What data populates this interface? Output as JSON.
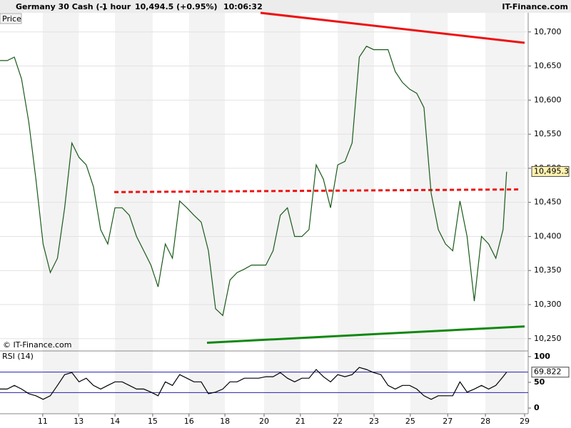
{
  "chart_data": [
    {
      "type": "line",
      "title": "Germany 30 Cash (-)",
      "interval": "1 hour",
      "quote": "10,494.5 (+0.95%)",
      "time": "10:06:32",
      "source": "IT-Finance.com",
      "ylabel": "Price",
      "copyright": "© IT-Finance.com",
      "color": "#1a5a1a",
      "grid": true,
      "x": [
        0,
        0.2,
        0.4,
        0.6,
        0.8,
        1,
        1.2,
        1.4,
        1.6,
        1.8,
        2,
        2.2,
        2.4,
        2.6,
        2.8,
        3,
        3.2,
        3.4,
        3.6,
        3.8,
        4,
        4.2,
        4.4,
        4.6,
        4.8,
        5,
        5.2,
        5.4,
        5.6,
        5.8,
        6,
        6.2,
        6.4,
        6.6,
        6.8,
        7,
        7.2,
        7.4,
        7.6,
        7.8,
        8,
        8.2,
        8.4,
        8.6,
        8.8,
        9,
        9.2,
        9.4,
        9.6,
        9.8,
        10,
        10.2,
        10.4,
        10.6,
        10.8,
        11,
        11.2,
        11.4,
        11.6,
        11.8,
        12,
        12.2,
        12.4,
        12.6,
        12.8,
        13,
        13.2,
        13.4,
        13.6,
        13.8,
        14,
        14.1
      ],
      "values": [
        10658,
        10658,
        10663,
        10631,
        10568,
        10484,
        10389,
        10347,
        10368,
        10442,
        10537,
        10516,
        10505,
        10473,
        10410,
        10389,
        10442,
        10442,
        10431,
        10400,
        10379,
        10358,
        10326,
        10389,
        10368,
        10452,
        10442,
        10431,
        10421,
        10379,
        10294,
        10284,
        10336,
        10347,
        10352,
        10358,
        10358,
        10358,
        10379,
        10431,
        10442,
        10400,
        10400,
        10410,
        10505,
        10484,
        10442,
        10505,
        10510,
        10537,
        10663,
        10679,
        10674,
        10674,
        10674,
        10642,
        10626,
        10616,
        10610,
        10589,
        10463,
        10410,
        10389,
        10379,
        10452,
        10400,
        10305,
        10400,
        10389,
        10368,
        10410,
        10495
      ],
      "xlim": [
        0,
        14.7
      ],
      "xticks": [
        {
          "value": 1.19,
          "label": "11"
        },
        {
          "value": 2.19,
          "label": "13"
        },
        {
          "value": 3.2,
          "label": "14"
        },
        {
          "value": 4.25,
          "label": "15"
        },
        {
          "value": 5.26,
          "label": "16"
        },
        {
          "value": 6.26,
          "label": "18"
        },
        {
          "value": 7.35,
          "label": "20"
        },
        {
          "value": 8.36,
          "label": "21"
        },
        {
          "value": 9.4,
          "label": "22"
        },
        {
          "value": 10.41,
          "label": "23"
        },
        {
          "value": 11.42,
          "label": "25"
        },
        {
          "value": 12.46,
          "label": "27"
        },
        {
          "value": 13.51,
          "label": "28"
        },
        {
          "value": 14.6,
          "label": "29"
        }
      ],
      "ylim": [
        10232,
        10728
      ],
      "yticks": [
        {
          "value": 10250,
          "label": "10,250"
        },
        {
          "value": 10300,
          "label": "10,300"
        },
        {
          "value": 10350,
          "label": "10,350"
        },
        {
          "value": 10400,
          "label": "10,400"
        },
        {
          "value": 10450,
          "label": "10,450"
        },
        {
          "value": 10500,
          "label": "10,500"
        },
        {
          "value": 10550,
          "label": "10,550"
        },
        {
          "value": 10600,
          "label": "10,600"
        },
        {
          "value": 10650,
          "label": "10,650"
        },
        {
          "value": 10700,
          "label": "10,700"
        }
      ],
      "last_value": {
        "value": 10495.3,
        "label": "10,495.3"
      },
      "trend_lines": [
        {
          "color": "#ee1111",
          "style": "solid",
          "x": [
            7.25,
            14.6
          ],
          "values": [
            10728,
            10684
          ]
        },
        {
          "color": "#ee1111",
          "style": "dashed",
          "x": [
            3.18,
            14.5
          ],
          "values": [
            10465,
            10469
          ]
        },
        {
          "color": "#118811",
          "style": "solid",
          "x": [
            5.76,
            14.6
          ],
          "values": [
            10244,
            10268
          ]
        }
      ]
    },
    {
      "type": "line",
      "title": "RSI (14)",
      "color": "#000000",
      "x": [
        0,
        0.2,
        0.4,
        0.6,
        0.8,
        1,
        1.2,
        1.4,
        1.6,
        1.8,
        2,
        2.2,
        2.4,
        2.6,
        2.8,
        3,
        3.2,
        3.4,
        3.6,
        3.8,
        4,
        4.2,
        4.4,
        4.6,
        4.8,
        5,
        5.2,
        5.4,
        5.6,
        5.8,
        6,
        6.2,
        6.4,
        6.6,
        6.8,
        7,
        7.2,
        7.4,
        7.6,
        7.8,
        8,
        8.2,
        8.4,
        8.6,
        8.8,
        9,
        9.2,
        9.4,
        9.6,
        9.8,
        10,
        10.2,
        10.4,
        10.6,
        10.8,
        11,
        11.2,
        11.4,
        11.6,
        11.8,
        12,
        12.2,
        12.4,
        12.6,
        12.8,
        13,
        13.2,
        13.4,
        13.6,
        13.8,
        14,
        14.1
      ],
      "values": [
        37,
        37,
        44,
        37,
        28,
        24,
        17,
        24,
        44,
        65,
        69,
        51,
        58,
        44,
        37,
        44,
        51,
        51,
        44,
        37,
        37,
        31,
        24,
        51,
        44,
        65,
        58,
        51,
        51,
        28,
        31,
        37,
        51,
        51,
        58,
        58,
        58,
        61,
        61,
        69,
        58,
        51,
        58,
        58,
        75,
        61,
        51,
        65,
        61,
        65,
        79,
        75,
        69,
        65,
        44,
        37,
        44,
        44,
        37,
        24,
        17,
        24,
        24,
        24,
        51,
        31,
        37,
        44,
        37,
        44,
        61,
        69.822
      ],
      "xlim": [
        0,
        14.7
      ],
      "ylim": [
        -11,
        111
      ],
      "yticks": [
        0,
        50,
        100
      ],
      "levels": [
        30,
        70
      ],
      "level_color": "#2222aa",
      "last_value": 69.822
    }
  ]
}
